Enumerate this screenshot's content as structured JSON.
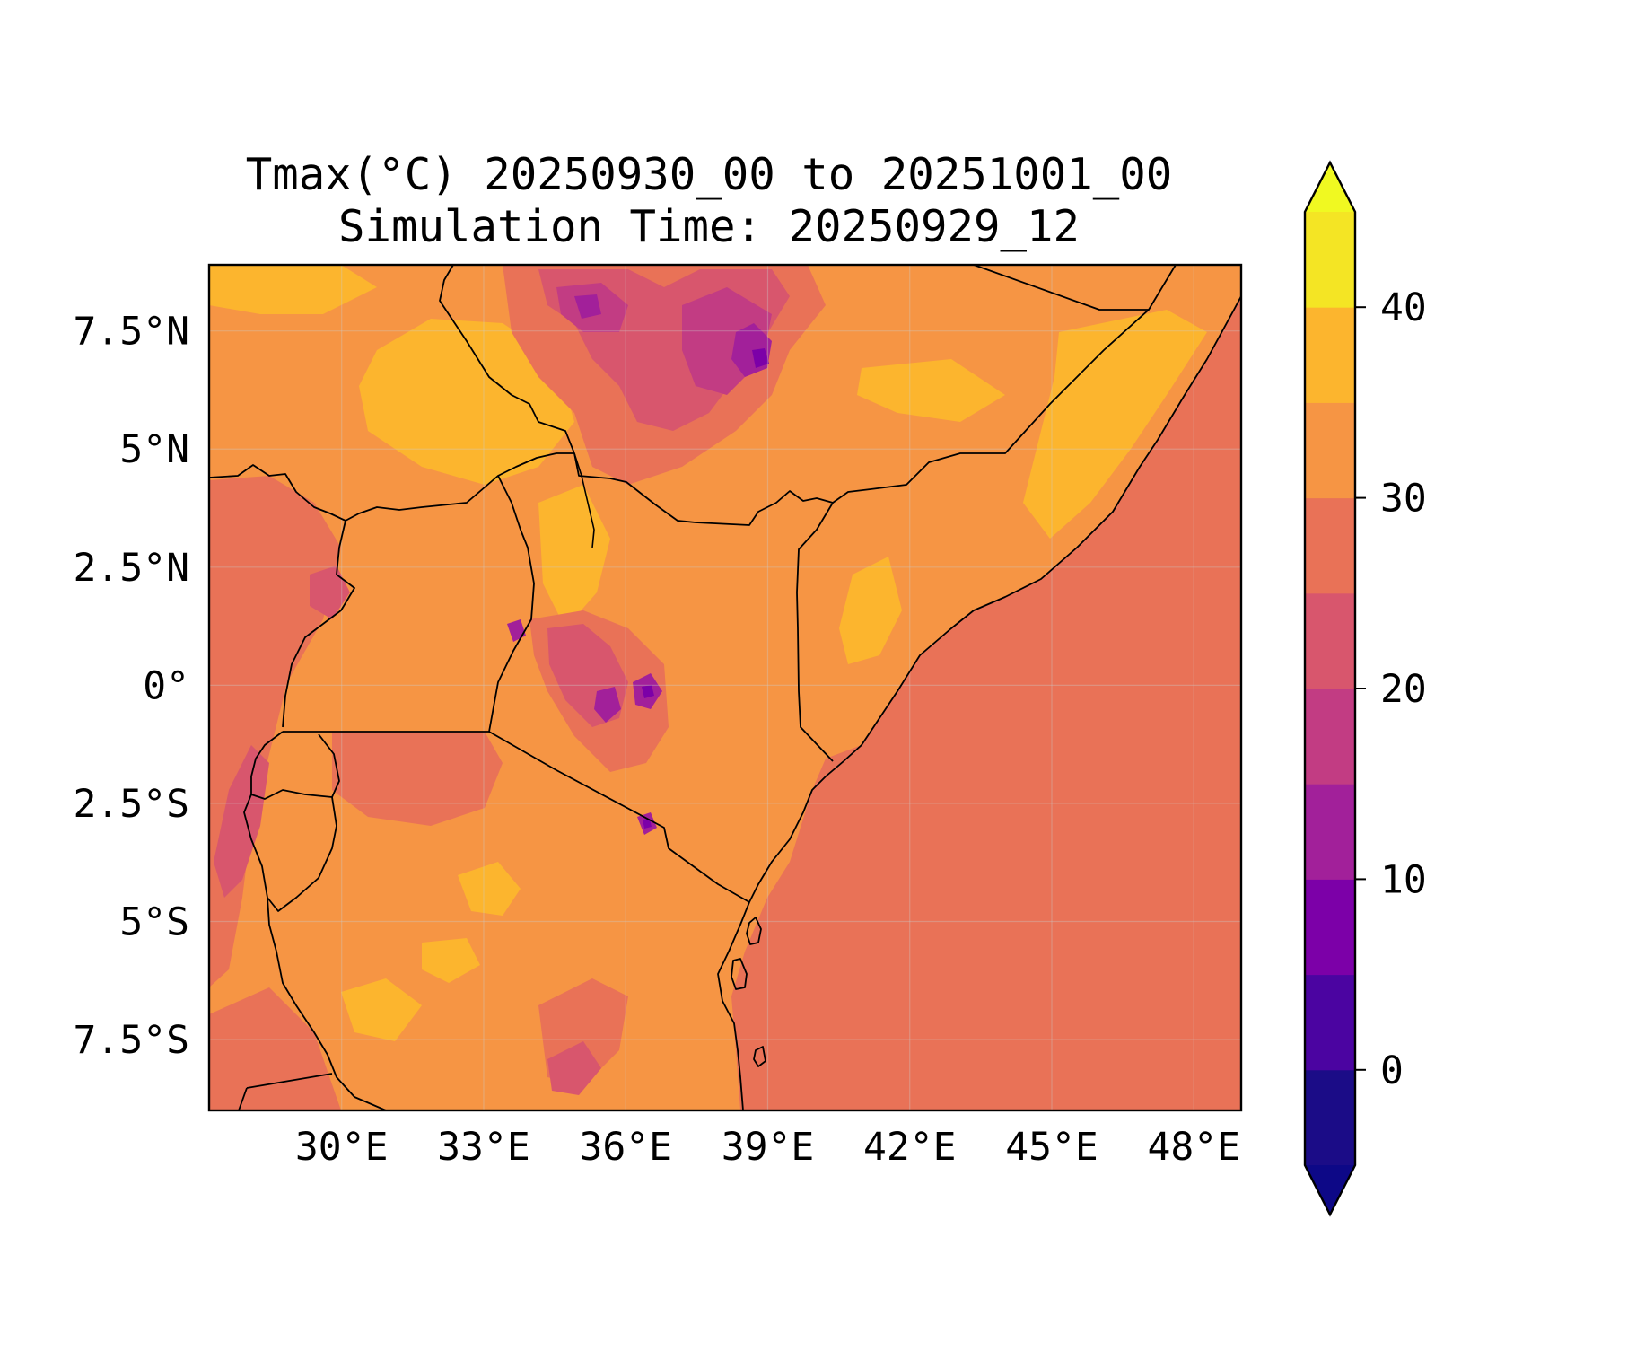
{
  "title": {
    "line1": "Tmax(°C) 20250930_00 to 20251001_00",
    "line2": "Simulation Time: 20250929_12"
  },
  "map": {
    "extent": {
      "lon_min": 27.2,
      "lon_max": 49.0,
      "lat_min": -9.0,
      "lat_max": 8.9
    },
    "land_base_class": "30-35",
    "ocean_class": "25-30",
    "x_ticks": [
      {
        "lon": 30,
        "label": "30°E"
      },
      {
        "lon": 33,
        "label": "33°E"
      },
      {
        "lon": 36,
        "label": "36°E"
      },
      {
        "lon": 39,
        "label": "39°E"
      },
      {
        "lon": 42,
        "label": "42°E"
      },
      {
        "lon": 45,
        "label": "45°E"
      },
      {
        "lon": 48,
        "label": "48°E"
      }
    ],
    "y_ticks": [
      {
        "lat": 7.5,
        "label": "7.5°N"
      },
      {
        "lat": 5,
        "label": "5°N"
      },
      {
        "lat": 2.5,
        "label": "2.5°N"
      },
      {
        "lat": 0,
        "label": "0°"
      },
      {
        "lat": -2.5,
        "label": "2.5°S"
      },
      {
        "lat": -5,
        "label": "5°S"
      },
      {
        "lat": -7.5,
        "label": "7.5°S"
      }
    ]
  },
  "colorbar": {
    "vmin": -5,
    "vmax": 45,
    "levels": [
      -5,
      0,
      5,
      10,
      15,
      20,
      25,
      30,
      35,
      40,
      45
    ],
    "colors": [
      "#1b0c87",
      "#4b04a1",
      "#7c00a8",
      "#a2209a",
      "#c23c83",
      "#d8566d",
      "#e97257",
      "#f69544",
      "#fcb52e",
      "#f4e524"
    ],
    "under_color": "#0d0887",
    "over_color": "#f0f921",
    "ticks": [
      {
        "value": 0,
        "label": "0"
      },
      {
        "value": 10,
        "label": "10"
      },
      {
        "value": 20,
        "label": "20"
      },
      {
        "value": 30,
        "label": "30"
      },
      {
        "value": 40,
        "label": "40"
      }
    ]
  }
}
